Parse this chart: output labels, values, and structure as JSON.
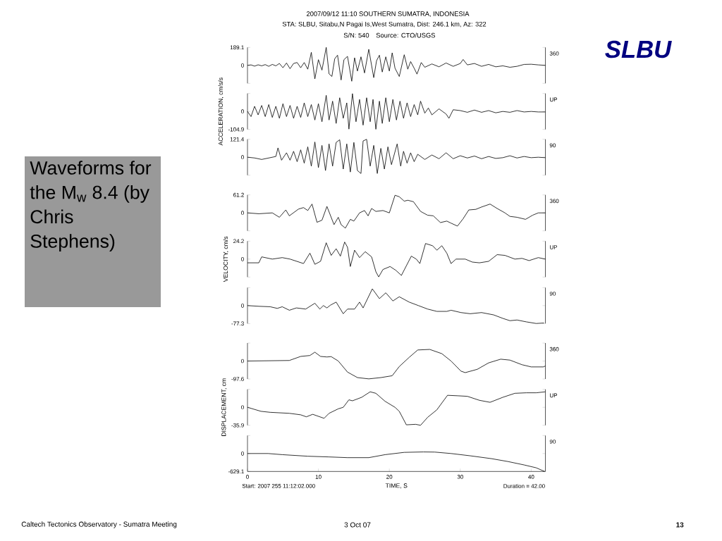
{
  "chart_data": [
    {
      "type": "line",
      "title": "2007/09/12 11:10 SOUTHERN SUMATRA, INDONESIA",
      "subtitle": "STA: SLBU, Sitabu,N Pagai Is,West Sumatra, Dist: 246.1 km, Az: 322",
      "annotations": [
        "SLBU",
        "Waveforms for the M$_{w}$ 8.4 (by Chris Stephens)",
        "S/N: 540",
        "Source: CTO/USGS",
        "Caltech Tectonics Observatory - Sumatra Meeting",
        "3 Oct 07",
        "13"
      ],
      "marker": "none",
      "tick_labels": "y",
      "xlim": [
        0,
        42
      ],
      "ylim": [
        -189.1,
        189.1
      ],
      "yticks": [
        {
          "value": -189.1,
          "label": null
        },
        0,
        189.1
      ],
      "x": [
        0,
        0.5,
        1,
        1.5,
        2,
        2.5,
        3,
        3.5,
        4,
        4.5,
        5,
        5.5,
        6,
        6.5,
        7,
        7.5,
        8,
        8.5,
        9,
        9.5,
        10,
        10.5,
        11.1,
        11.5,
        11.9,
        12.3,
        12.7,
        13.2,
        13.6,
        14.1,
        14.7,
        15.1,
        15.5,
        16,
        16.5,
        17.1,
        17.8,
        18.2,
        18.6,
        19,
        19.5,
        20,
        20.4,
        20.8,
        21.4,
        22.1,
        22.6,
        23,
        23.5,
        23.9,
        24.5,
        25,
        26,
        27,
        28,
        29,
        30,
        30.4,
        31,
        32,
        33,
        34,
        35,
        36,
        37,
        38,
        39,
        40,
        41,
        42
      ],
      "series": [
        {
          "name": "360",
          "color": "#000000",
          "values": [
            0,
            5,
            -8,
            6,
            -5,
            8,
            -10,
            10,
            -5,
            20,
            -25,
            25,
            -35,
            20,
            30,
            -25,
            30,
            -40,
            137,
            -142,
            60,
            -50,
            189,
            -90,
            -117,
            70,
            107,
            -154,
            60,
            95,
            -167,
            80,
            -60,
            90,
            -80,
            169,
            -129,
            50,
            107,
            -70,
            90,
            -60,
            132,
            -30,
            -117,
            112,
            -40,
            40,
            -30,
            -92,
            30,
            -20,
            15,
            -15,
            25,
            -10,
            20,
            62,
            5,
            20,
            -10,
            10,
            -15,
            -5,
            -20,
            -10,
            10,
            12,
            5,
            0
          ]
        }
      ]
    },
    {
      "type": "line",
      "ylabel": "ACCELERATION, cm/s/s",
      "marker": "none",
      "tick_labels": "y",
      "xlim": [
        0,
        42
      ],
      "ylim": [
        -104.9,
        104.9
      ],
      "yticks": [
        -104.9,
        0,
        {
          "value": 104.9,
          "label": null
        }
      ],
      "x": [
        0,
        0.5,
        1,
        1.5,
        2,
        2.5,
        3,
        3.5,
        4,
        4.5,
        5,
        5.5,
        6,
        6.5,
        7,
        7.5,
        8,
        8.5,
        9,
        9.5,
        10,
        10.5,
        11.1,
        11.5,
        12,
        12.5,
        13,
        13.5,
        14,
        14.3,
        14.8,
        15.3,
        15.8,
        16.3,
        16.8,
        17.3,
        17.7,
        18.1,
        18.6,
        19,
        19.5,
        20,
        20.5,
        21,
        21.5,
        22,
        22.5,
        23,
        23.5,
        24,
        24.4,
        25,
        25.5,
        26,
        27,
        28,
        28.4,
        29,
        30,
        31,
        32,
        33,
        34,
        35,
        36,
        37,
        38,
        39,
        40,
        41,
        42
      ],
      "series": [
        {
          "name": "UP",
          "color": "#000000",
          "values": [
            0,
            -30,
            30,
            -20,
            35,
            -30,
            40,
            -35,
            30,
            -40,
            45,
            -30,
            35,
            -40,
            30,
            -35,
            50,
            -30,
            40,
            -50,
            45,
            -60,
            94,
            -50,
            60,
            -70,
            80,
            -40,
            50,
            -103,
            104,
            -60,
            70,
            -80,
            80,
            -60,
            70,
            -104,
            60,
            -70,
            80,
            -60,
            70,
            -50,
            60,
            -40,
            50,
            -30,
            40,
            -20,
            60,
            -10,
            20,
            -20,
            15,
            -15,
            -40,
            10,
            5,
            -5,
            8,
            -5,
            5,
            -8,
            0,
            -5,
            5,
            -3,
            0,
            -3,
            -3
          ]
        }
      ]
    },
    {
      "type": "line",
      "marker": "none",
      "tick_labels": "y",
      "xlim": [
        0,
        42
      ],
      "ylim": [
        -121.4,
        121.4
      ],
      "yticks": [
        {
          "value": -121.4,
          "label": null
        },
        0,
        121.4
      ],
      "x": [
        0,
        1,
        2,
        3,
        4,
        4.3,
        4.8,
        5.5,
        6,
        6.5,
        7,
        7.5,
        8,
        8.5,
        9,
        9.5,
        10,
        10.5,
        11,
        11.5,
        12,
        12.5,
        13,
        13.5,
        14,
        14.5,
        15,
        15.5,
        16,
        16.3,
        16.8,
        17.3,
        17.8,
        18.3,
        18.8,
        19.3,
        19.8,
        20.3,
        21.1,
        21.6,
        22,
        22.5,
        23,
        23.5,
        24,
        25,
        26,
        27,
        28,
        29,
        30,
        31,
        32,
        33,
        34,
        35,
        36,
        37,
        38,
        39,
        40,
        41,
        42
      ],
      "series": [
        {
          "name": "90",
          "color": "#000000",
          "values": [
            0,
            -5,
            -15,
            -5,
            5,
            63,
            -20,
            30,
            -20,
            40,
            -30,
            50,
            -40,
            70,
            -60,
            103,
            -70,
            80,
            -90,
            90,
            -60,
            100,
            118,
            -80,
            90,
            -100,
            100,
            -90,
            -110,
            110,
            121,
            -60,
            80,
            -110,
            60,
            -80,
            70,
            -50,
            90,
            -60,
            40,
            -40,
            30,
            -30,
            20,
            -15,
            15,
            -10,
            30,
            -10,
            10,
            -5,
            8,
            -10,
            5,
            -8,
            -3,
            10,
            -5,
            5,
            -3,
            0,
            -3
          ]
        }
      ]
    },
    {
      "type": "line",
      "marker": "none",
      "tick_labels": "y",
      "xlim": [
        0,
        42
      ],
      "ylim": [
        -61.2,
        61.2
      ],
      "yticks": [
        {
          "value": -61.2,
          "label": null
        },
        0,
        61.2
      ],
      "x": [
        0,
        1.6,
        3.5,
        4.5,
        5.4,
        5.9,
        7.2,
        7.9,
        8.5,
        9.1,
        9.8,
        10.5,
        11.2,
        12.2,
        12.8,
        13.2,
        13.8,
        14.5,
        15,
        15.8,
        16.5,
        17,
        17.5,
        18.1,
        19.1,
        20,
        20.8,
        21.4,
        22.1,
        22.6,
        23.4,
        24.4,
        25.4,
        26.2,
        27.2,
        28.1,
        28.7,
        29.6,
        30.4,
        31.2,
        32.2,
        33,
        34.2,
        35.2,
        36.3,
        37,
        38,
        39.2,
        40.2,
        41,
        41.8,
        42
      ],
      "series": [
        {
          "name": "360",
          "color": "#000000",
          "values": [
            0,
            -3,
            0,
            -15,
            10,
            -10,
            13,
            18,
            8,
            30,
            -32,
            -25,
            22,
            -40,
            -15,
            -40,
            -52,
            -22,
            -28,
            0,
            8,
            -10,
            15,
            5,
            8,
            0,
            60,
            55,
            40,
            43,
            38,
            5,
            -8,
            -10,
            -33,
            -28,
            -35,
            -45,
            -20,
            10,
            12,
            20,
            30,
            15,
            0,
            -12,
            -15,
            -22,
            -8,
            0,
            0,
            0
          ]
        }
      ]
    },
    {
      "type": "line",
      "ylabel": "VELOCITY, cm/s",
      "marker": "none",
      "tick_labels": "y",
      "xlim": [
        0,
        42
      ],
      "ylim": [
        -24.2,
        24.2
      ],
      "yticks": [
        {
          "value": -24.2,
          "label": null
        },
        0,
        24.2
      ],
      "x": [
        0,
        1.6,
        2,
        3.5,
        4.9,
        6,
        7.9,
        8.8,
        9.5,
        10.3,
        11.1,
        11.8,
        12.5,
        13.1,
        13.7,
        14.1,
        14.5,
        15.1,
        15.8,
        16.6,
        17.5,
        18.1,
        18.5,
        19.1,
        20.1,
        20.9,
        21.7,
        23.1,
        23.8,
        24.3,
        25.1,
        26.1,
        26.7,
        27.4,
        28.1,
        28.7,
        29.4,
        30.7,
        31.7,
        32.7,
        34,
        35.2,
        36.3,
        37.7,
        38.7,
        39.7,
        41,
        42
      ],
      "series": [
        {
          "name": "UP",
          "color": "#000000",
          "values": [
            -5,
            -5,
            3,
            0,
            2,
            0,
            -6,
            8,
            -7,
            -3,
            22,
            5,
            14,
            4,
            23,
            16,
            -10,
            12,
            2,
            10,
            3,
            -17,
            -24,
            -14,
            -10,
            -15,
            -22,
            4,
            0,
            -6,
            21,
            18,
            12,
            18,
            8,
            -6,
            0,
            0,
            -4,
            -5,
            -3,
            6,
            5,
            0,
            1,
            -2,
            2,
            0
          ]
        }
      ]
    },
    {
      "type": "line",
      "marker": "none",
      "tick_labels": "y",
      "xlim": [
        0,
        42
      ],
      "ylim": [
        -77.3,
        77.3
      ],
      "yticks": [
        -77.3,
        0,
        {
          "value": 77.3,
          "label": null
        }
      ],
      "x": [
        0,
        1.6,
        3.2,
        4.2,
        4.9,
        5.9,
        6.9,
        8.2,
        9.5,
        10.2,
        10.7,
        11.2,
        11.7,
        12.5,
        13.5,
        14.1,
        15.1,
        15.8,
        16.3,
        17.6,
        18.6,
        19.5,
        20.5,
        21.4,
        22.8,
        24.1,
        25.4,
        26.7,
        28.1,
        28.7,
        30.1,
        31.4,
        33,
        34.7,
        36,
        37,
        38,
        39.3,
        40.7,
        41.8
      ],
      "series": [
        {
          "name": "90",
          "color": "#000000",
          "values": [
            0,
            -3,
            -5,
            -12,
            -5,
            -20,
            -10,
            -15,
            10,
            -15,
            0,
            -10,
            2,
            15,
            -35,
            -15,
            -15,
            15,
            -10,
            72,
            30,
            55,
            20,
            38,
            15,
            0,
            -15,
            -25,
            -25,
            -20,
            -30,
            -35,
            -30,
            -40,
            -55,
            -65,
            -62,
            -70,
            -77,
            -75
          ]
        }
      ]
    },
    {
      "type": "line",
      "marker": "none",
      "tick_labels": "y",
      "xlim": [
        0,
        42
      ],
      "ylim": [
        -97.6,
        97.6
      ],
      "yticks": [
        -97.6,
        0,
        {
          "value": 97.6,
          "label": null
        }
      ],
      "x": [
        0,
        5.9,
        7.5,
        8.8,
        9.5,
        10.3,
        11.2,
        11.8,
        12.8,
        14.1,
        15.5,
        17.1,
        18.8,
        20.4,
        21.4,
        22.8,
        24,
        25.7,
        27.4,
        28.7,
        30.1,
        30.7,
        32.4,
        34,
        35.7,
        37,
        38.7,
        40,
        41.7,
        42
      ],
      "series": [
        {
          "name": "360",
          "color": "#000000",
          "values": [
            0,
            3,
            25,
            30,
            48,
            25,
            22,
            24,
            0,
            -60,
            -90,
            -97,
            -90,
            -80,
            -30,
            20,
            60,
            63,
            40,
            0,
            -55,
            -63,
            -45,
            -10,
            10,
            5,
            -20,
            -32,
            -32,
            -27
          ]
        }
      ]
    },
    {
      "type": "line",
      "ylabel": "DISPLACEMENT, cm",
      "marker": "none",
      "tick_labels": "y",
      "xlim": [
        0,
        42
      ],
      "ylim": [
        -35.9,
        35.9
      ],
      "yticks": [
        -35.9,
        0,
        {
          "value": 35.9,
          "label": null
        }
      ],
      "x": [
        0,
        1.9,
        3.2,
        5.9,
        7.5,
        8.3,
        9.2,
        10.8,
        11.5,
        12.8,
        13.5,
        14.3,
        14.8,
        16.1,
        17.3,
        18.1,
        19.4,
        20.8,
        21.4,
        22.4,
        23.7,
        24.4,
        25.4,
        26.7,
        28.2,
        29.7,
        31,
        32.7,
        34.2,
        36,
        37.7,
        39.3,
        40.7,
        42
      ],
      "series": [
        {
          "name": "UP",
          "color": "#000000",
          "values": [
            0,
            -8,
            -10,
            -12,
            -15,
            -19,
            -14,
            -22,
            -12,
            -3,
            0,
            15,
            13,
            20,
            31,
            28,
            12,
            0,
            -8,
            -35,
            -34,
            -35.9,
            -20,
            -5,
            24,
            23,
            22,
            14,
            10,
            20,
            28,
            29,
            29,
            31
          ]
        }
      ]
    },
    {
      "type": "line",
      "xlabel": "TIME, S",
      "annotations": [
        "Start: 2007 255 11:12:02.000",
        "Duration = 42.00"
      ],
      "marker": "none",
      "xlim": [
        0,
        42
      ],
      "xticks": [
        0,
        10,
        20,
        30,
        40
      ],
      "ylim": [
        -629.1,
        629.1
      ],
      "yticks": [
        -629.1,
        0,
        {
          "value": 629.1,
          "label": null
        }
      ],
      "x": [
        0,
        2.9,
        4.9,
        8.5,
        11.5,
        14.1,
        17.1,
        19.4,
        22.1,
        24.8,
        26.4,
        28.7,
        31.4,
        34.4,
        36.7,
        39,
        40.7,
        41.9
      ],
      "series": [
        {
          "name": "90",
          "color": "#000000",
          "values": [
            0,
            0,
            -40,
            -95,
            -120,
            -145,
            -145,
            -40,
            40,
            55,
            50,
            0,
            -80,
            -180,
            -280,
            -400,
            -500,
            -629
          ]
        }
      ]
    }
  ]
}
